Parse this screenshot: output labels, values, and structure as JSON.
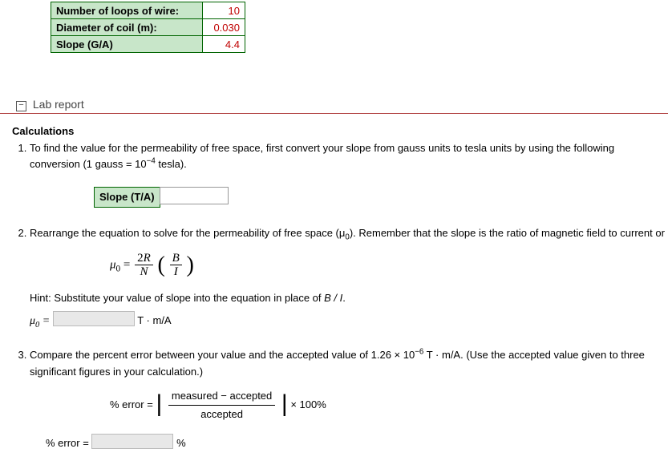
{
  "params_table": {
    "border_color": "#006400",
    "label_bg": "#c8e6c9",
    "value_color": "#c00000",
    "rows": [
      {
        "label": "Number of loops of wire:",
        "value": "10"
      },
      {
        "label": "Diameter of coil (m):",
        "value": "0.030"
      },
      {
        "label": "Slope (G/A)",
        "value": "4.4"
      }
    ]
  },
  "section": {
    "toggle_glyph": "⊟",
    "title": "Lab report"
  },
  "calculations": {
    "heading": "Calculations",
    "q1": {
      "text_a": "To find the value for the permeability of free space, first convert your slope from gauss units to tesla units by using the following conversion (1 gauss = 10",
      "exp": "−4",
      "text_b": " tesla).",
      "slope_label": "Slope (T/A)"
    },
    "q2": {
      "text": "Rearrange the equation to solve for the permeability of free space (μ",
      "sub0": "0",
      "text2": "). Remember that the slope is the ratio of magnetic field to current or",
      "eq": {
        "lhs_sym": "μ",
        "lhs_sub": "0",
        "num1": "2R",
        "den1": "N",
        "num2": "B",
        "den2": "I"
      },
      "hint": "Hint: Substitute your value of slope into the equation in place of ",
      "hint_var": "B / I",
      "hint_end": ".",
      "ans_lhs": "μ",
      "ans_sub": "0",
      "ans_unit": "T · m/A"
    },
    "q3": {
      "text_a": "Compare the percent error between your value and the accepted value of 1.26 × 10",
      "exp": "−6",
      "text_b": " T · m/A. (Use the accepted value given to three significant figures in your calculation.)",
      "eq": {
        "lhs": "% error =",
        "num": "measured  −  accepted",
        "den": "accepted",
        "tail": "× 100%"
      },
      "ans_lhs": "% error =",
      "ans_unit": "%"
    }
  }
}
